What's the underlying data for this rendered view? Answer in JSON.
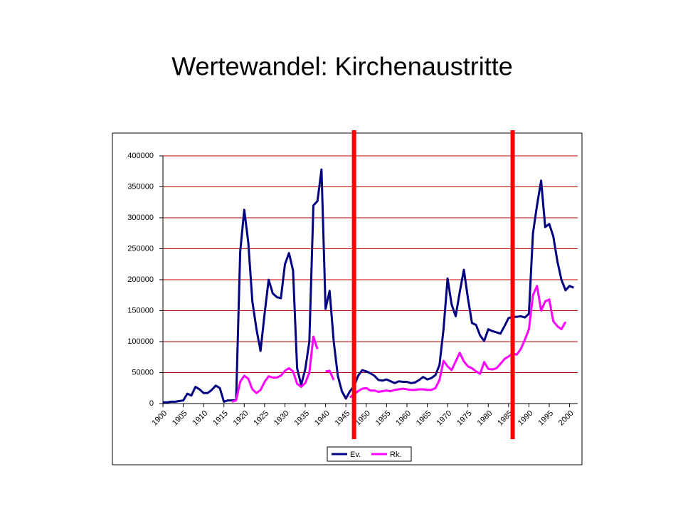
{
  "chart_data": {
    "type": "line",
    "title": "Wertewandel: Kirchenaustritte",
    "x": [
      1900,
      1901,
      1902,
      1903,
      1904,
      1905,
      1906,
      1907,
      1908,
      1909,
      1910,
      1911,
      1912,
      1913,
      1914,
      1915,
      1916,
      1917,
      1918,
      1919,
      1920,
      1921,
      1922,
      1923,
      1924,
      1925,
      1926,
      1927,
      1928,
      1929,
      1930,
      1931,
      1932,
      1933,
      1934,
      1935,
      1936,
      1937,
      1938,
      1939,
      1940,
      1941,
      1942,
      1943,
      1944,
      1945,
      1946,
      1947,
      1948,
      1949,
      1950,
      1951,
      1952,
      1953,
      1954,
      1955,
      1956,
      1957,
      1958,
      1959,
      1960,
      1961,
      1962,
      1963,
      1964,
      1965,
      1966,
      1967,
      1968,
      1969,
      1970,
      1971,
      1972,
      1973,
      1974,
      1975,
      1976,
      1977,
      1978,
      1979,
      1980,
      1981,
      1982,
      1983,
      1984,
      1985,
      1986,
      1987,
      1988,
      1989,
      1990,
      1991,
      1992,
      1993,
      1994,
      1995,
      1996,
      1997,
      1998,
      1999,
      2000,
      2001
    ],
    "series": [
      {
        "name": "Ev.",
        "color": "#000080",
        "values": [
          2000,
          2000,
          3000,
          3000,
          4000,
          5000,
          16000,
          13000,
          27000,
          23000,
          17000,
          17000,
          22000,
          29000,
          25000,
          3000,
          5000,
          5000,
          6000,
          245000,
          313000,
          260000,
          165000,
          120000,
          85000,
          145000,
          200000,
          178000,
          172000,
          170000,
          225000,
          243000,
          215000,
          57000,
          30000,
          55000,
          100000,
          320000,
          327000,
          378000,
          153000,
          182000,
          100000,
          45000,
          20000,
          8000,
          20000,
          28000,
          45000,
          54000,
          52000,
          49000,
          45000,
          38000,
          37000,
          39000,
          36000,
          33000,
          36000,
          35000,
          35000,
          33000,
          34000,
          38000,
          43000,
          39000,
          41000,
          46000,
          62000,
          120000,
          202000,
          160000,
          141000,
          180000,
          216000,
          170000,
          130000,
          127000,
          110000,
          101000,
          120000,
          117000,
          115000,
          113000,
          125000,
          138000,
          140000,
          140000,
          141000,
          139000,
          145000,
          275000,
          320000,
          360000,
          285000,
          290000,
          270000,
          230000,
          200000,
          183000,
          190000,
          187000
        ]
      },
      {
        "name": "Rk.",
        "color": "#ff00ff",
        "values": [
          null,
          null,
          null,
          null,
          null,
          null,
          null,
          null,
          null,
          null,
          null,
          null,
          null,
          null,
          null,
          null,
          null,
          3000,
          5000,
          35000,
          45000,
          40000,
          23000,
          17000,
          22000,
          35000,
          44000,
          42000,
          42000,
          45000,
          53000,
          57000,
          52000,
          32000,
          27000,
          33000,
          50000,
          108000,
          88000,
          null,
          52000,
          53000,
          38000,
          null,
          null,
          null,
          10000,
          15000,
          20000,
          24000,
          25000,
          21000,
          21000,
          19000,
          20000,
          21000,
          20000,
          22000,
          23000,
          24000,
          23000,
          22000,
          22000,
          23000,
          23000,
          22000,
          22000,
          25000,
          38000,
          69000,
          60000,
          54000,
          68000,
          82000,
          68000,
          60000,
          57000,
          52000,
          48000,
          67000,
          56000,
          55000,
          57000,
          64000,
          72000,
          76000,
          81000,
          79000,
          88000,
          103000,
          120000,
          175000,
          190000,
          150000,
          165000,
          168000,
          133000,
          125000,
          120000,
          132000,
          null,
          null
        ]
      }
    ],
    "xlim": [
      1900,
      2002
    ],
    "xticks": [
      1900,
      1905,
      1910,
      1915,
      1920,
      1925,
      1930,
      1935,
      1940,
      1945,
      1950,
      1955,
      1960,
      1965,
      1970,
      1975,
      1980,
      1985,
      1990,
      1995,
      2000
    ],
    "ylim": [
      0,
      400000
    ],
    "yticks": [
      0,
      50000,
      100000,
      150000,
      200000,
      250000,
      300000,
      350000,
      400000
    ],
    "grid": true,
    "grid_color": "#c00000",
    "legend": "bottom",
    "markers": {
      "x": [
        1947,
        1986
      ],
      "color": "#ff0000"
    }
  }
}
